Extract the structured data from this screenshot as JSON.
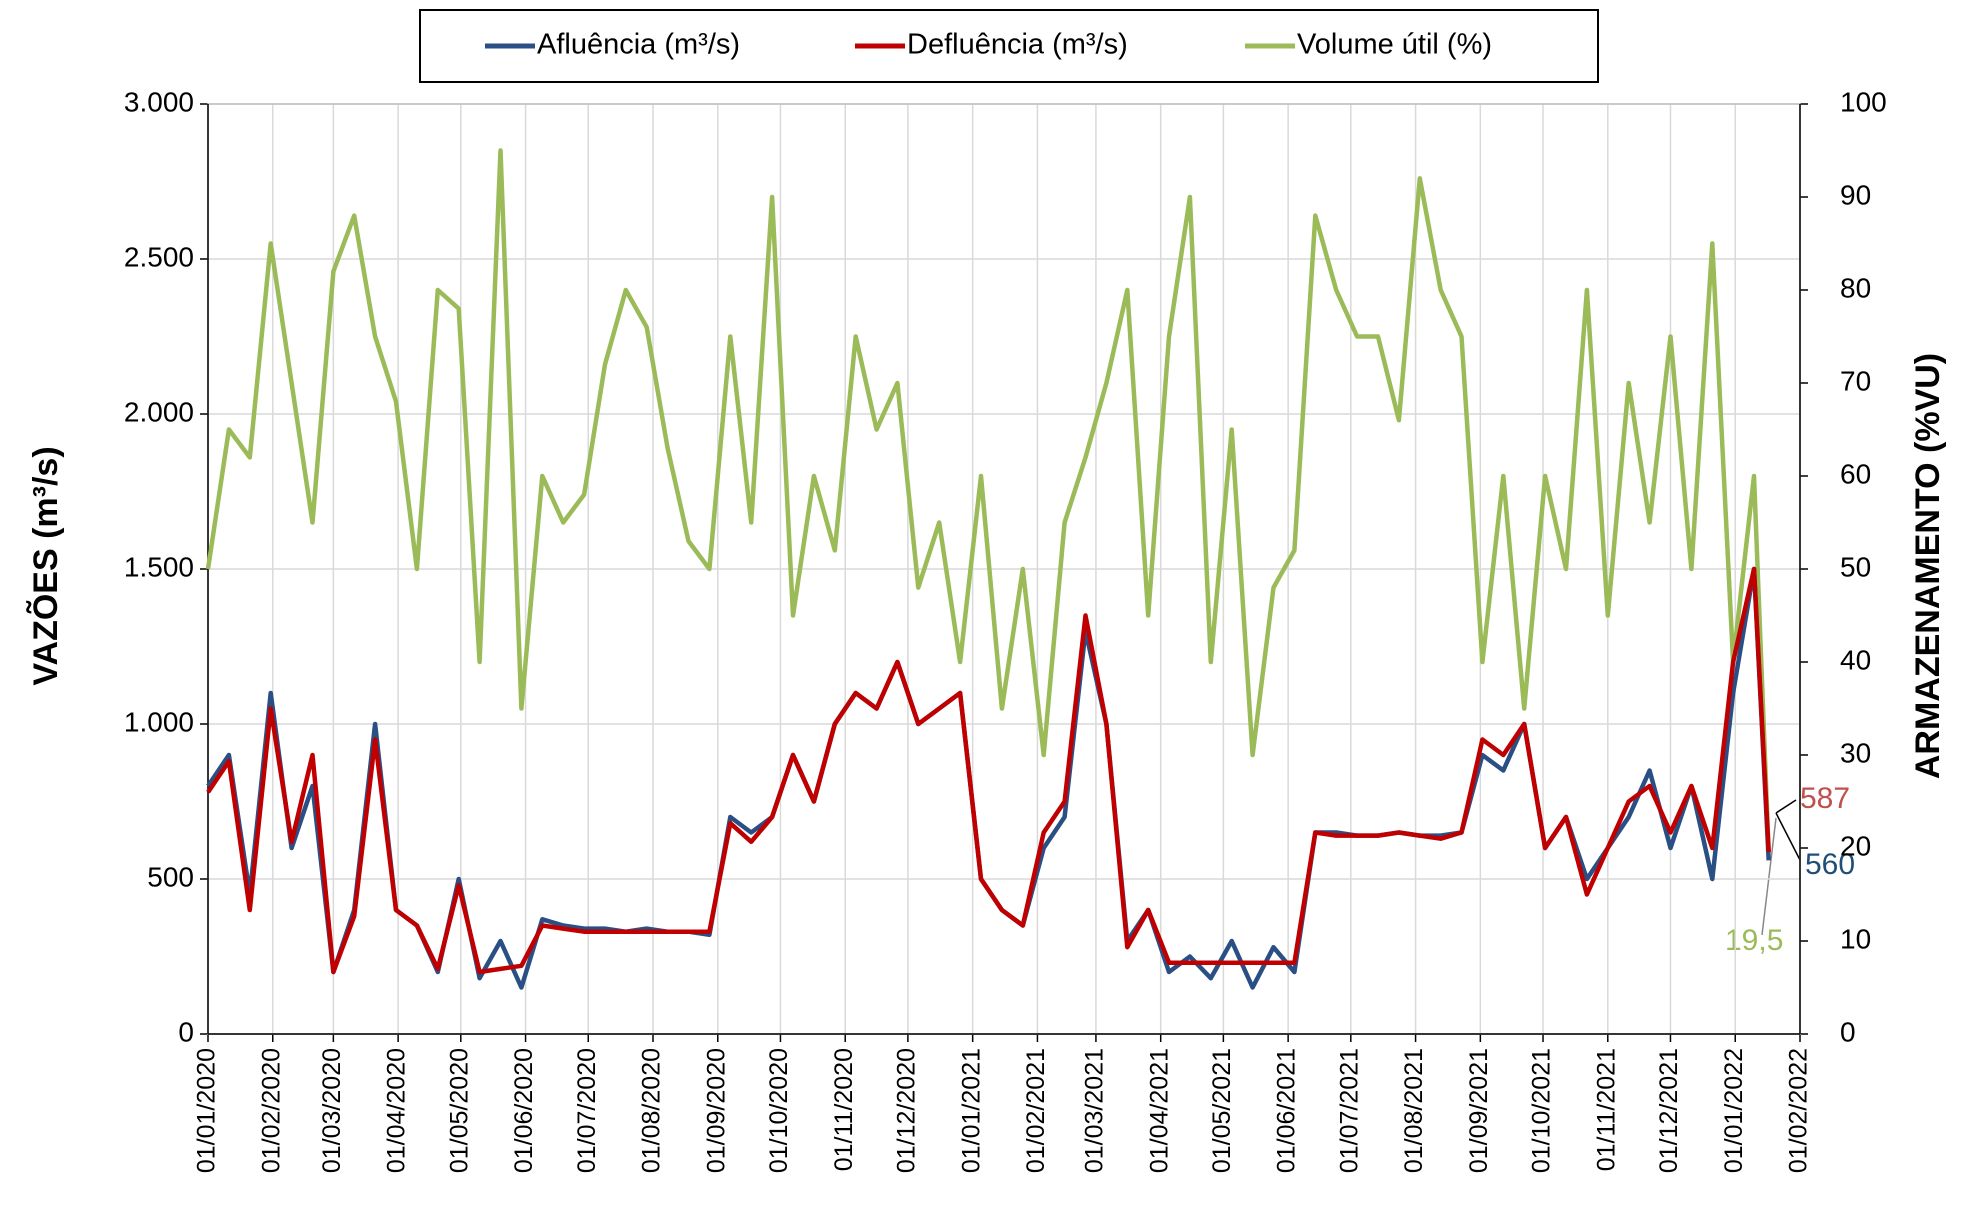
{
  "chart_data": {
    "type": "line",
    "y_label": "VAZÕES (m³/s)",
    "y2_label": "ARMAZENAMENTO (%VU)",
    "x": [
      "01/01/2020",
      "11/01/2020",
      "21/01/2020",
      "31/01/2020",
      "10/02/2020",
      "20/02/2020",
      "01/03/2020",
      "11/03/2020",
      "21/03/2020",
      "31/03/2020",
      "10/04/2020",
      "20/04/2020",
      "30/04/2020",
      "10/05/2020",
      "20/05/2020",
      "30/05/2020",
      "09/06/2020",
      "19/06/2020",
      "29/06/2020",
      "09/07/2020",
      "19/07/2020",
      "29/07/2020",
      "08/08/2020",
      "18/08/2020",
      "28/08/2020",
      "07/09/2020",
      "17/09/2020",
      "27/09/2020",
      "07/10/2020",
      "17/10/2020",
      "27/10/2020",
      "06/11/2020",
      "16/11/2020",
      "26/11/2020",
      "06/12/2020",
      "16/12/2020",
      "26/12/2020",
      "05/01/2021",
      "15/01/2021",
      "25/01/2021",
      "04/02/2021",
      "14/02/2021",
      "24/02/2021",
      "06/03/2021",
      "16/03/2021",
      "26/03/2021",
      "05/04/2021",
      "15/04/2021",
      "25/04/2021",
      "05/05/2021",
      "15/05/2021",
      "25/05/2021",
      "04/06/2021",
      "14/06/2021",
      "24/06/2021",
      "04/07/2021",
      "14/07/2021",
      "24/07/2021",
      "03/08/2021",
      "13/08/2021",
      "23/08/2021",
      "02/09/2021",
      "12/09/2021",
      "22/09/2021",
      "02/10/2021",
      "12/10/2021",
      "22/10/2021",
      "01/11/2021",
      "11/11/2021",
      "21/11/2021",
      "01/12/2021",
      "11/12/2021",
      "21/12/2021",
      "31/12/2021",
      "10/01/2022",
      "17/01/2022"
    ],
    "series": [
      {
        "name": "Afluência (m³/s)",
        "color": "#2a4f84",
        "values": [
          800,
          900,
          450,
          1100,
          600,
          800,
          200,
          400,
          1000,
          400,
          350,
          200,
          500,
          180,
          300,
          150,
          370,
          350,
          340,
          340,
          330,
          340,
          330,
          330,
          320,
          700,
          650,
          700,
          900,
          750,
          1000,
          1100,
          1050,
          1200,
          1000,
          1050,
          1100,
          500,
          400,
          350,
          600,
          700,
          1300,
          1000,
          300,
          400,
          200,
          250,
          180,
          300,
          150,
          280,
          200,
          650,
          650,
          640,
          640,
          650,
          640,
          640,
          650,
          900,
          850,
          1000,
          600,
          700,
          500,
          600,
          700,
          850,
          600,
          800,
          500,
          1100,
          1500,
          560
        ]
      },
      {
        "name": "Defluência (m³/s)",
        "color": "#c00000",
        "values": [
          780,
          880,
          400,
          1050,
          620,
          900,
          200,
          380,
          950,
          400,
          350,
          210,
          480,
          200,
          210,
          220,
          350,
          340,
          330,
          330,
          330,
          330,
          330,
          330,
          330,
          680,
          620,
          700,
          900,
          750,
          1000,
          1100,
          1050,
          1200,
          1000,
          1050,
          1100,
          500,
          400,
          350,
          650,
          750,
          1350,
          1000,
          280,
          400,
          230,
          230,
          230,
          230,
          230,
          230,
          230,
          650,
          640,
          640,
          640,
          650,
          640,
          630,
          650,
          950,
          900,
          1000,
          600,
          700,
          450,
          600,
          750,
          800,
          650,
          800,
          600,
          1200,
          1500,
          587
        ]
      },
      {
        "name": "Volume útil (%)",
        "color": "#9bbb59",
        "axis": "y2",
        "values": [
          50,
          65,
          62,
          85,
          70,
          55,
          82,
          88,
          75,
          68,
          50,
          80,
          78,
          40,
          95,
          35,
          60,
          55,
          58,
          72,
          80,
          76,
          63,
          53,
          50,
          75,
          55,
          90,
          45,
          60,
          52,
          75,
          65,
          70,
          48,
          55,
          40,
          60,
          35,
          50,
          30,
          55,
          62,
          70,
          80,
          45,
          75,
          90,
          40,
          65,
          30,
          48,
          52,
          88,
          80,
          75,
          75,
          66,
          92,
          80,
          75,
          40,
          60,
          35,
          60,
          50,
          80,
          45,
          70,
          55,
          75,
          50,
          85,
          40,
          60,
          19.5
        ]
      }
    ],
    "annotations": [
      {
        "text": "587",
        "color": "#c0504d"
      },
      {
        "text": "560",
        "color": "#1f4e79"
      },
      {
        "text": "19,5",
        "color": "#9bbb59"
      }
    ],
    "xlim": [
      "01/01/2020",
      "01/02/2022"
    ],
    "xticks": [
      "01/01/2020",
      "01/02/2020",
      "01/03/2020",
      "01/04/2020",
      "01/05/2020",
      "01/06/2020",
      "01/07/2020",
      "01/08/2020",
      "01/09/2020",
      "01/10/2020",
      "01/11/2020",
      "01/12/2020",
      "01/01/2021",
      "01/02/2021",
      "01/03/2021",
      "01/04/2021",
      "01/05/2021",
      "01/06/2021",
      "01/07/2021",
      "01/08/2021",
      "01/09/2021",
      "01/10/2021",
      "01/11/2021",
      "01/12/2021",
      "01/01/2022",
      "01/02/2022"
    ],
    "ylim": [
      0,
      3000
    ],
    "yticks": [
      0,
      500,
      {
        "value": 1000,
        "label": "1.000"
      },
      {
        "value": 1500,
        "label": "1.500"
      },
      {
        "value": 2000,
        "label": "2.000"
      },
      {
        "value": 2500,
        "label": "2.500"
      },
      {
        "value": 3000,
        "label": "3.000"
      }
    ],
    "y2lim": [
      0,
      100
    ],
    "y2ticks": [
      0,
      10,
      20,
      30,
      40,
      50,
      60,
      70,
      80,
      90,
      100
    ],
    "grid": true
  }
}
